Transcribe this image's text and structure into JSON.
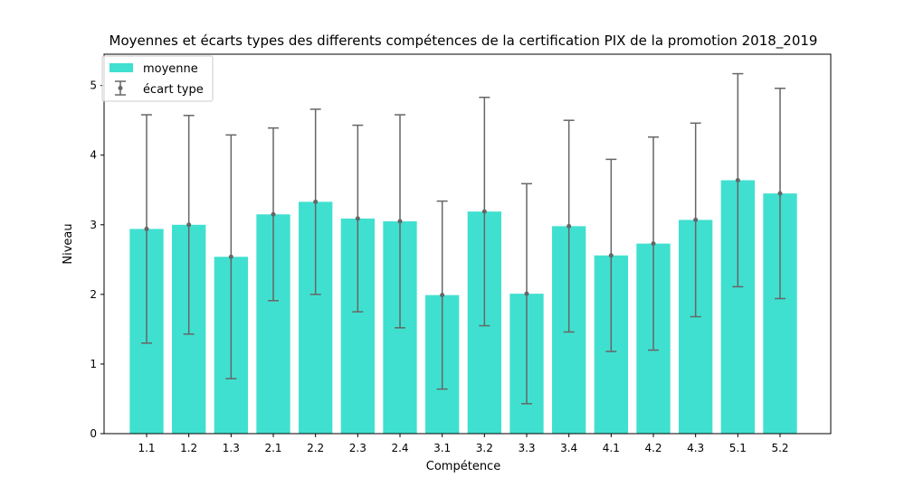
{
  "chart_data": {
    "type": "bar",
    "title": "Moyennes et écarts types des differents compétences de la certification PIX de la promotion 2018_2019",
    "xlabel": "Compétence",
    "ylabel": "Niveau",
    "ylim": [
      0,
      5.45
    ],
    "yticks": [
      "0",
      "1",
      "2",
      "3",
      "4",
      "5"
    ],
    "categories": [
      "1.1",
      "1.2",
      "1.3",
      "2.1",
      "2.2",
      "2.3",
      "2.4",
      "3.1",
      "3.2",
      "3.3",
      "3.4",
      "4.1",
      "4.2",
      "4.3",
      "5.1",
      "5.2"
    ],
    "series": [
      {
        "name": "moyenne",
        "values": [
          2.94,
          3.0,
          2.54,
          3.15,
          3.33,
          3.09,
          3.05,
          1.99,
          3.19,
          2.01,
          2.98,
          2.56,
          2.73,
          3.07,
          3.64,
          3.45
        ]
      }
    ],
    "error_series": {
      "name": "écart type",
      "values": [
        1.64,
        1.57,
        1.75,
        1.24,
        1.33,
        1.34,
        1.53,
        1.35,
        1.64,
        1.58,
        1.52,
        1.38,
        1.53,
        1.39,
        1.53,
        1.51
      ]
    },
    "legend": {
      "position": "top-left"
    },
    "colors": {
      "bar": "#40e0d0",
      "error": "#666666"
    }
  }
}
